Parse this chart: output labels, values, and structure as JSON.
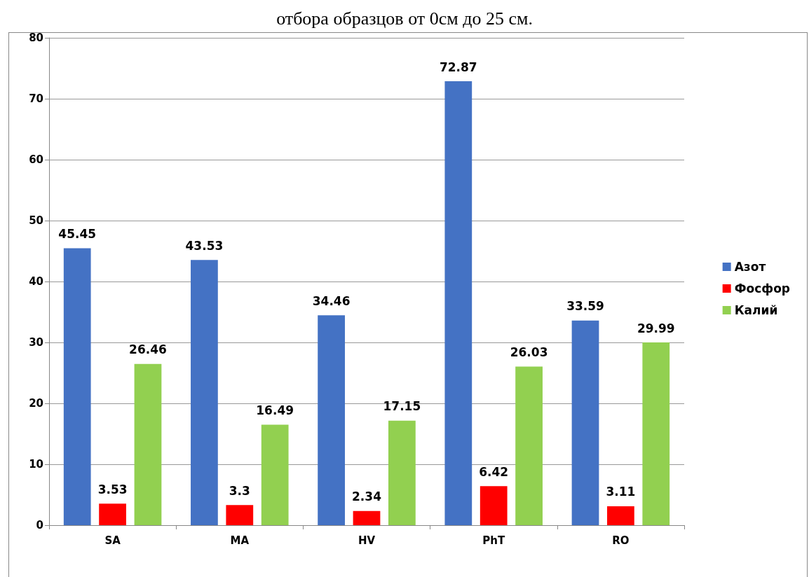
{
  "chart_data": {
    "type": "bar",
    "title": "отбора образцов от 0см до 25 см.",
    "categories": [
      "SA",
      "MA",
      "HV",
      "PhT",
      "RO"
    ],
    "series": [
      {
        "name": "Азот",
        "color": "#4472c4",
        "values": [
          45.45,
          43.53,
          34.46,
          72.87,
          33.59
        ]
      },
      {
        "name": "Фосфор",
        "color": "#ff0000",
        "values": [
          3.53,
          3.3,
          2.34,
          6.42,
          3.11
        ]
      },
      {
        "name": "Калий",
        "color": "#92d050",
        "values": [
          26.46,
          16.49,
          17.15,
          26.03,
          29.99
        ]
      }
    ],
    "ylim": [
      0,
      80
    ],
    "yticks": [
      0,
      10,
      20,
      30,
      40,
      50,
      60,
      70,
      80
    ],
    "grid": "y",
    "legend": "right",
    "data_labels": true
  }
}
